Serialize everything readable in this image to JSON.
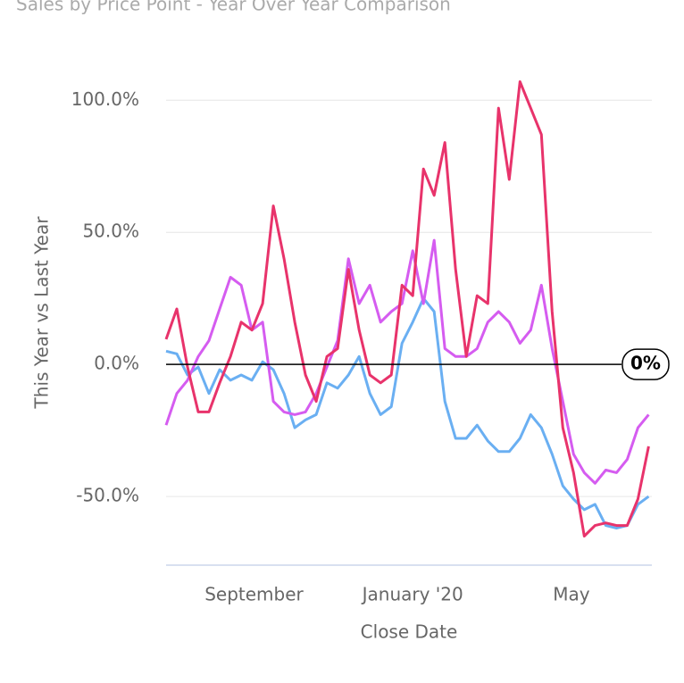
{
  "chart_data": {
    "type": "line",
    "title": "Sales by Price Point - Year Over Year Comparison",
    "x_label": "Close Date",
    "y_label": "This Year vs Last Year",
    "x": [
      0,
      1,
      2,
      3,
      4,
      5,
      6,
      7,
      8,
      9,
      10,
      11,
      12,
      13,
      14,
      15,
      16,
      17,
      18,
      19,
      20,
      21,
      22,
      23,
      24,
      25,
      26,
      27,
      28,
      29,
      30,
      31,
      32,
      33,
      34,
      35,
      36,
      37,
      38,
      39,
      40,
      41,
      42,
      43,
      44,
      45
    ],
    "xlim": [
      0,
      45.3
    ],
    "xticks": [
      {
        "value": 8.2,
        "label": "September"
      },
      {
        "value": 23,
        "label": "January '20"
      },
      {
        "value": 37.8,
        "label": "May"
      }
    ],
    "ylim": [
      -76,
      118
    ],
    "yticks": [
      {
        "value": -50,
        "label": "-50.0%"
      },
      {
        "value": 0,
        "label": "0.0%"
      },
      {
        "value": 50,
        "label": "50.0%"
      },
      {
        "value": 100,
        "label": "100.0%"
      }
    ],
    "grid": true,
    "zero_line": {
      "value": 0,
      "label": "0%"
    },
    "series": [
      {
        "color": "#6aaff2",
        "values": [
          5,
          4,
          -4,
          -1,
          -11,
          -2,
          -6,
          -4,
          -6,
          1,
          -2,
          -11,
          -24,
          -21,
          -19,
          -7,
          -9,
          -4,
          3,
          -11,
          -19,
          -16,
          8,
          16,
          25,
          20,
          -14,
          -28,
          -28,
          -23,
          -29,
          -33,
          -33,
          -28,
          -19,
          -24,
          -34,
          -46,
          -51,
          -55,
          -53,
          -61,
          -62,
          -61,
          -53,
          -50
        ]
      },
      {
        "color": "#d55cf0",
        "values": [
          -23,
          -11,
          -6,
          3,
          9,
          21,
          33,
          30,
          13,
          16,
          -14,
          -18,
          -19,
          -18,
          -11,
          -1,
          9,
          40,
          23,
          30,
          16,
          20,
          23,
          43,
          23,
          47,
          6,
          3,
          3,
          6,
          16,
          20,
          16,
          8,
          13,
          30,
          6,
          -14,
          -34,
          -41,
          -45,
          -40,
          -41,
          -36,
          -24,
          -19
        ]
      },
      {
        "color": "#e8336b",
        "values": [
          9.5,
          21,
          -1,
          -18,
          -18,
          -7,
          3,
          16,
          13,
          23,
          60,
          40,
          16,
          -4,
          -14,
          3,
          6,
          36,
          13,
          -4,
          -7,
          -4,
          30,
          26,
          74,
          64,
          84,
          36,
          3,
          26,
          23,
          97,
          70,
          107,
          97,
          87,
          20,
          -24,
          -41,
          -65,
          -61,
          -60,
          -61,
          -61,
          -51,
          -31
        ]
      }
    ]
  }
}
